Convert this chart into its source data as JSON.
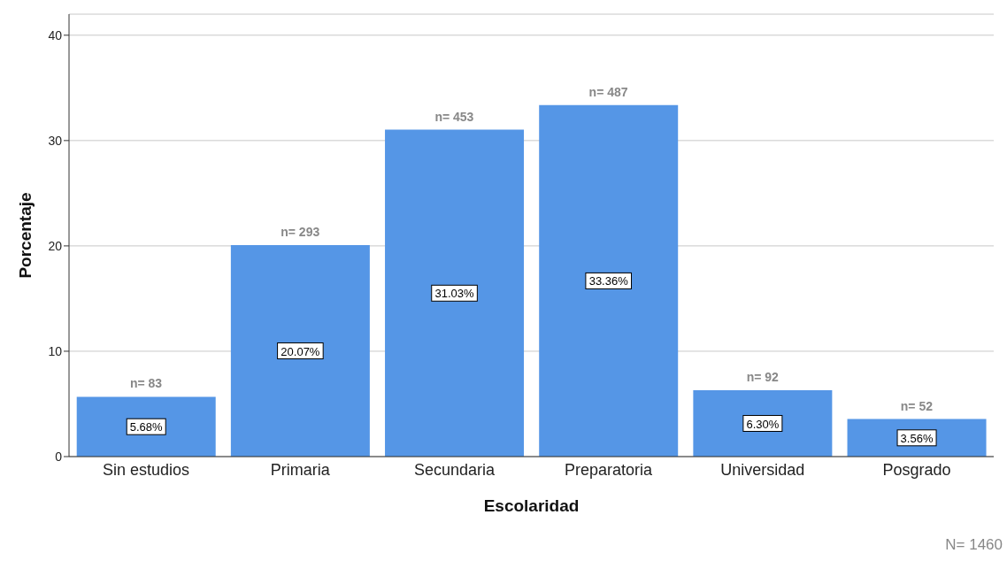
{
  "chart_data": {
    "type": "bar",
    "xlabel": "Escolaridad",
    "ylabel": "Porcentaje",
    "categories": [
      "Sin estudios",
      "Primaria",
      "Secundaria",
      "Preparatoria",
      "Universidad",
      "Posgrado"
    ],
    "values": [
      5.68,
      20.07,
      31.03,
      33.36,
      6.3,
      3.56
    ],
    "value_labels": [
      "5.68%",
      "20.07%",
      "31.03%",
      "33.36%",
      "6.30%",
      "3.56%"
    ],
    "color": "#5596e6",
    "ylim": [
      0,
      42
    ],
    "yticks": [
      0,
      10,
      20,
      30,
      40
    ],
    "grid": "y",
    "legend": false,
    "annotations": [
      {
        "text": "n= 83",
        "x": "Sin estudios",
        "y": 5.68
      },
      {
        "text": "n= 293",
        "x": "Primaria",
        "y": 20.07
      },
      {
        "text": "n= 453",
        "x": "Secundaria",
        "y": 31.03
      },
      {
        "text": "n= 487",
        "x": "Preparatoria",
        "y": 33.36
      },
      {
        "text": "n= 92",
        "x": "Universidad",
        "y": 6.3
      },
      {
        "text": "n= 52",
        "x": "Posgrado",
        "y": 3.56
      },
      "N= 1460"
    ]
  }
}
